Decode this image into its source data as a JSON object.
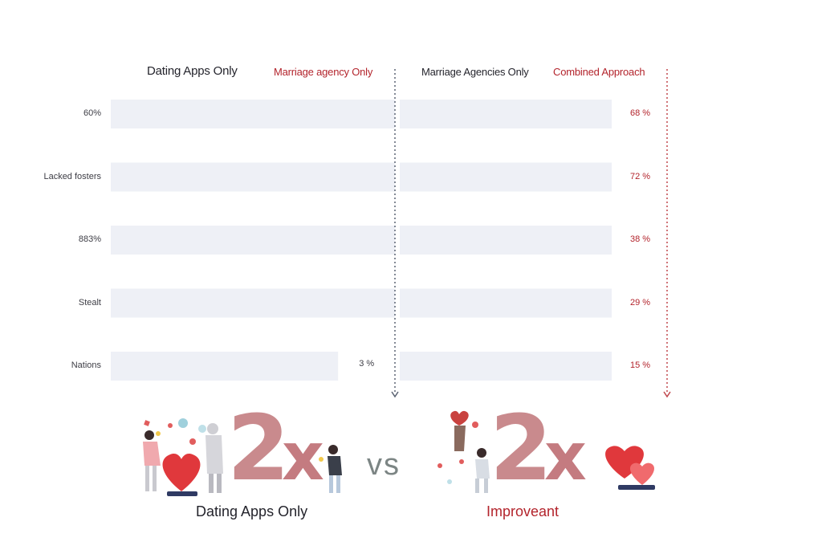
{
  "chart_data": {
    "type": "bar",
    "orientation": "horizontal",
    "series": [
      {
        "name": "Dating Apps Only",
        "color": "#24242c"
      },
      {
        "name": "Marriage agency Only",
        "color": "#b3242c"
      },
      {
        "name": "Marriage Agencies Only",
        "color": "#24242c"
      },
      {
        "name": "Combined Approach",
        "color": "#b3242c"
      }
    ],
    "rows": [
      {
        "label": "60%",
        "left_fraction": 1.0,
        "right_fraction": 1.0,
        "left_value_label": "",
        "right_value_label": "68 %"
      },
      {
        "label": "Lacked fosters",
        "left_fraction": 1.0,
        "right_fraction": 1.0,
        "left_value_label": "",
        "right_value_label": "72 %"
      },
      {
        "label": "883%",
        "left_fraction": 1.0,
        "right_fraction": 1.0,
        "left_value_label": "",
        "right_value_label": "38 %"
      },
      {
        "label": "Stealt",
        "left_fraction": 1.0,
        "right_fraction": 1.0,
        "left_value_label": "",
        "right_value_label": "29 %"
      },
      {
        "label": "Nations",
        "left_fraction": 0.8,
        "right_fraction": 1.0,
        "left_value_label": "3 %",
        "right_value_label": "15 %"
      }
    ],
    "grid": false,
    "legend_position": "top"
  },
  "footer": {
    "left_caption": "Dating Apps Only",
    "right_caption": "Improveant",
    "vs_text": "vs",
    "left_big_number": "2",
    "left_big_suffix": "x",
    "right_big_number": "2",
    "right_big_suffix": "x"
  },
  "colors": {
    "bar_fill": "#eef0f6",
    "accent_red": "#b3242c",
    "dark_text": "#24242c",
    "divider_dark": "#5a6272",
    "divider_red": "#c0464c"
  }
}
